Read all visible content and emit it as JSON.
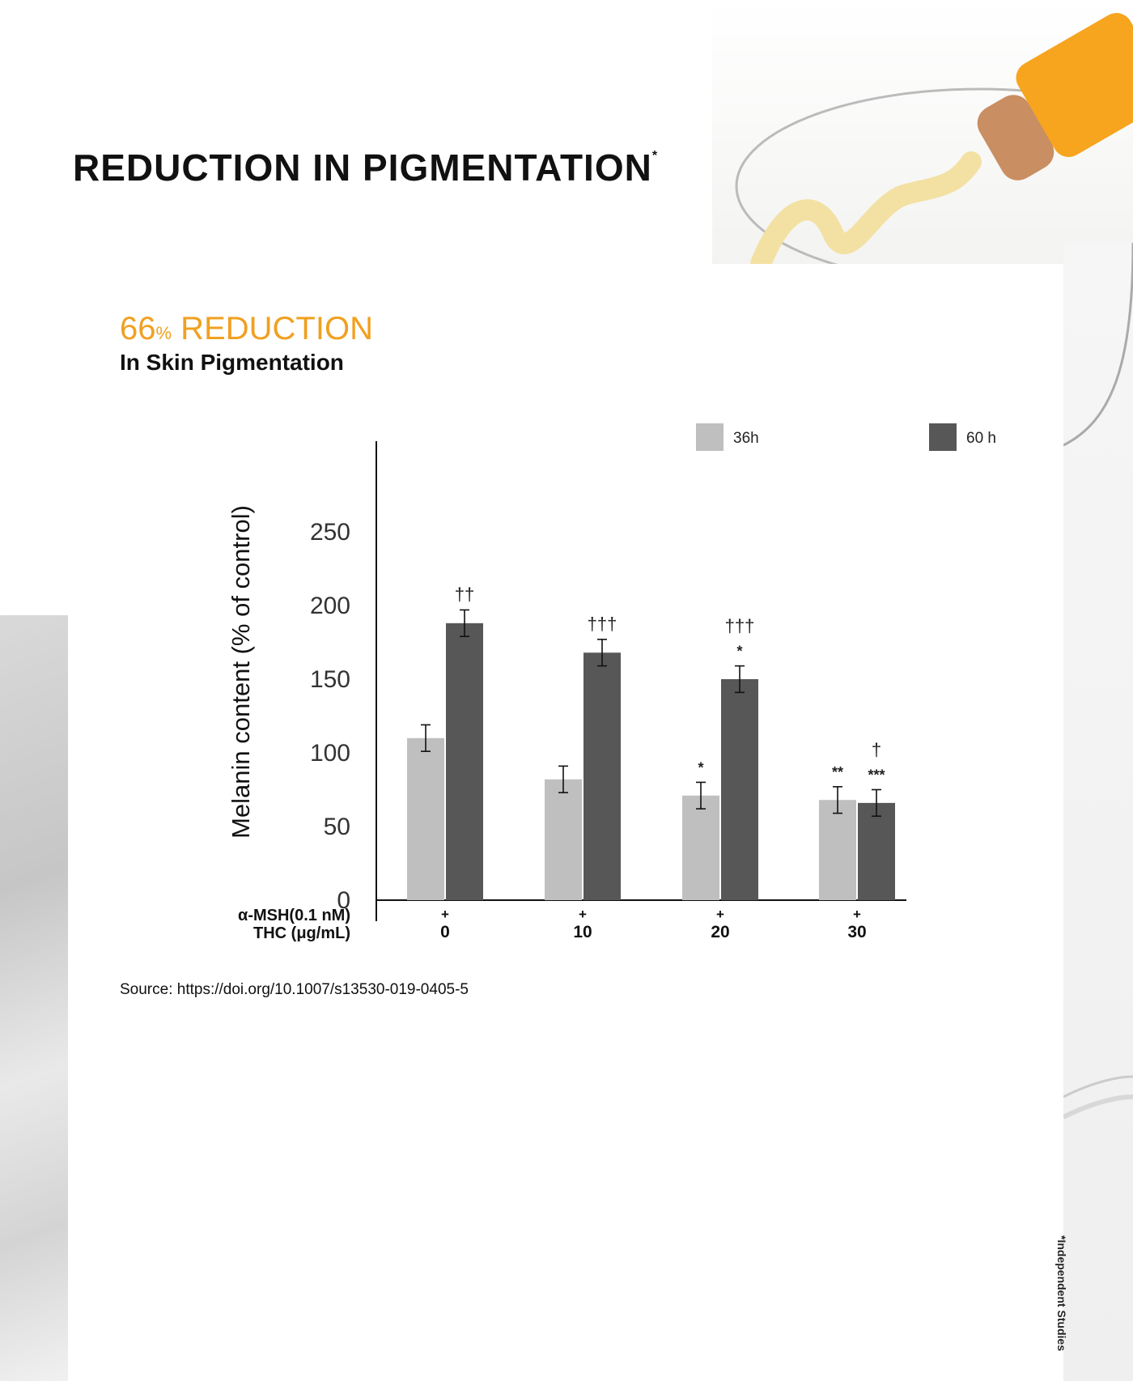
{
  "page": {
    "title": "REDUCTION IN PIGMENTATION",
    "title_mark": "*",
    "headline_value": "66",
    "headline_percent": "%",
    "headline_text": " REDUCTION",
    "subheadline": "In Skin Pigmentation",
    "source": "Source: https://doi.org/10.1007/s13530-019-0405-5",
    "footnote": "*Independent Studies"
  },
  "colors": {
    "accent": "#f0a020",
    "series_36h": "#c0bfc0",
    "series_60h": "#575757"
  },
  "chart_data": {
    "type": "bar",
    "title": "",
    "xlabel": "",
    "ylabel": "Melanin content (% of control)",
    "ylim": [
      0,
      300
    ],
    "yticks": [
      0,
      50,
      100,
      150,
      200,
      250
    ],
    "row_labels": [
      "α-MSH(0.1 nM)",
      "THC (μg/mL)"
    ],
    "categories": [
      "0",
      "10",
      "20",
      "30"
    ],
    "msh_markers": [
      "+",
      "+",
      "+",
      "+"
    ],
    "legend_position": "top-right",
    "series": [
      {
        "name": "36h",
        "values": [
          110,
          82,
          71,
          68
        ],
        "errors": [
          9,
          9,
          9,
          9
        ],
        "annotations": [
          "",
          "",
          "*",
          "**"
        ]
      },
      {
        "name": "60 h",
        "values": [
          188,
          168,
          150,
          66
        ],
        "errors": [
          9,
          9,
          9,
          9
        ],
        "annotations": [
          "††",
          "†††",
          "†††\n*",
          "†\n***"
        ]
      }
    ]
  }
}
